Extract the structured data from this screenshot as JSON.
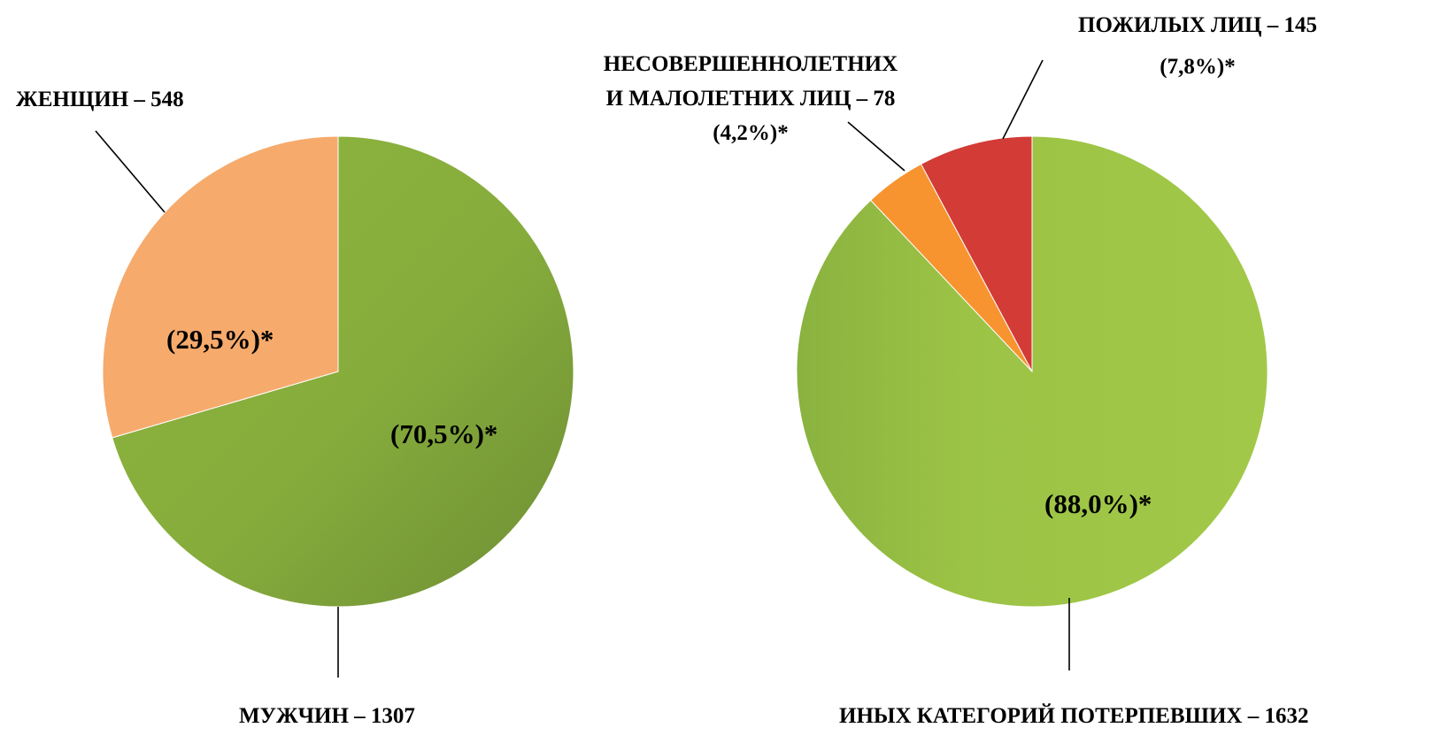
{
  "chart_data": [
    {
      "type": "pie",
      "slices": [
        {
          "label": "ЖЕНЩИН – 548",
          "value": 548,
          "percent_label": "(29,5%)*",
          "color": "#F6AA6C"
        },
        {
          "label": "МУЖЧИН – 1307",
          "value": 1307,
          "percent_label": "(70,5%)*",
          "color": "#86AC3C"
        }
      ]
    },
    {
      "type": "pie",
      "slices": [
        {
          "label": "ИНЫХ КАТЕГОРИЙ ПОТЕРПЕВШИХ – 1632",
          "value": 1632,
          "percent_label": "(88,0%)*",
          "color": "#9CC345"
        },
        {
          "label_lines": [
            "НЕСОВЕРШЕННОЛЕТНИХ",
            "И МАЛОЛЕТНИХ ЛИЦ – 78",
            "(4,2%)*"
          ],
          "value": 78,
          "color": "#F79430"
        },
        {
          "label_lines": [
            "ПОЖИЛЫХ ЛИЦ – 145",
            "(7,8%)*"
          ],
          "value": 145,
          "color": "#D23B36"
        }
      ]
    }
  ]
}
